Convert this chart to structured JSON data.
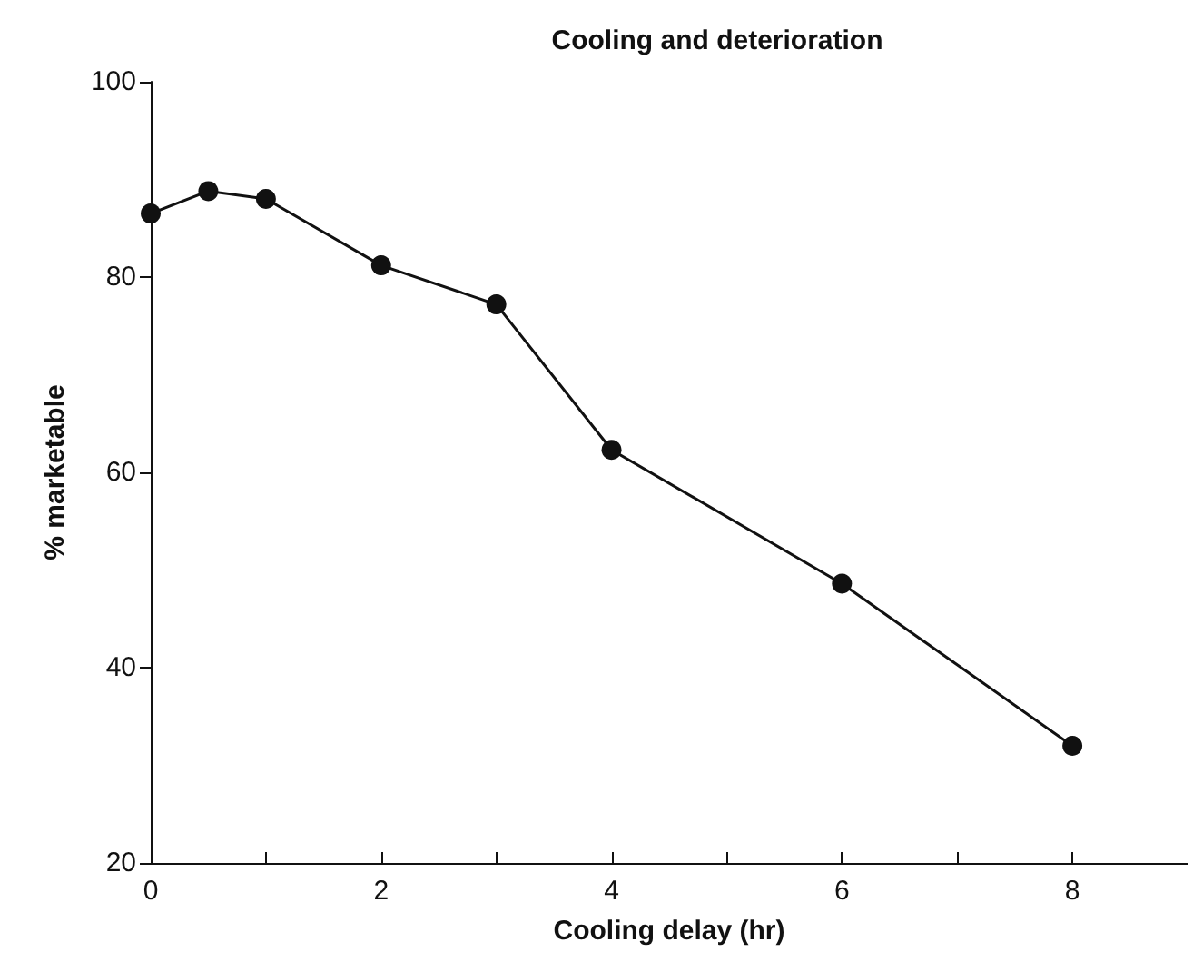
{
  "chart_data": {
    "type": "line",
    "title": "Cooling and deterioration",
    "xlabel": "Cooling delay (hr)",
    "ylabel": "% marketable",
    "x": [
      0,
      0.5,
      1,
      2,
      3,
      4,
      6,
      8
    ],
    "series": [
      {
        "color": "#111111",
        "values": [
          86.5,
          88.8,
          88,
          81.2,
          77.2,
          62.3,
          48.6,
          32
        ]
      }
    ],
    "xlim": [
      0,
      9
    ],
    "xticks": [
      0,
      {
        "value": 1,
        "label": null
      },
      2,
      {
        "value": 3,
        "label": null
      },
      4,
      {
        "value": 5,
        "label": null
      },
      6,
      {
        "value": 7,
        "label": null
      },
      8
    ],
    "ylim": [
      20,
      100
    ],
    "yticks": [
      20,
      40,
      60,
      80,
      100
    ],
    "grid": false,
    "marker": "circle",
    "line_style": "solid"
  }
}
